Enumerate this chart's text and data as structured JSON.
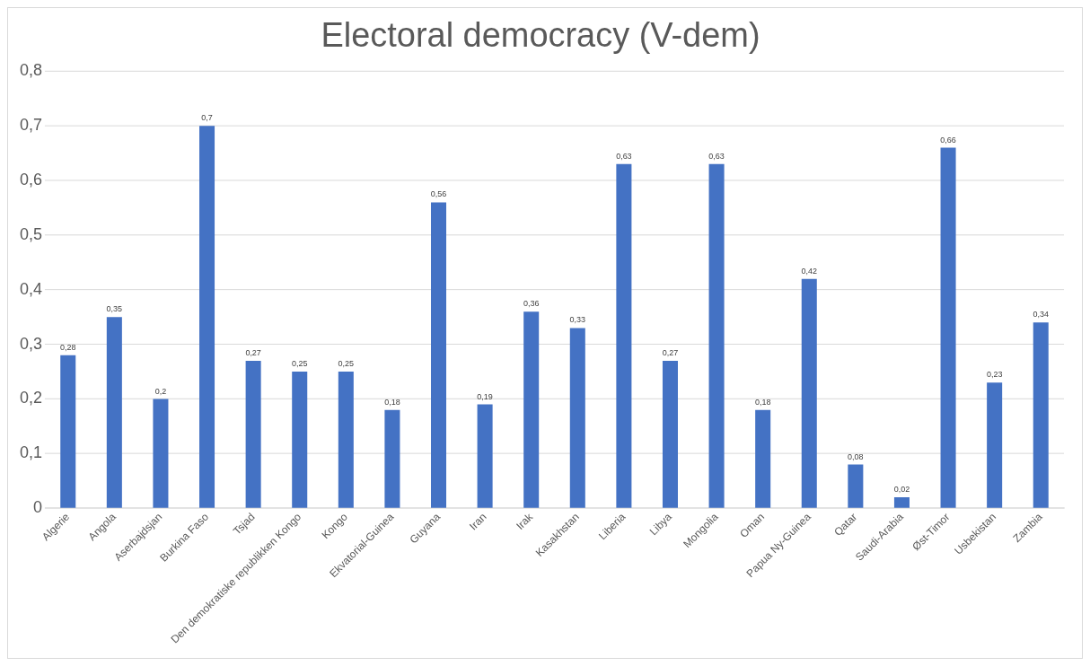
{
  "chart_data": {
    "type": "bar",
    "title": "Electoral democracy (V-dem)",
    "categories": [
      "Algerie",
      "Angola",
      "Aserbajdsjan",
      "Burkina Faso",
      "Tsjad",
      "Den demokratiske republikken Kongo",
      "Kongo",
      "Ekvatorial-Guinea",
      "Guyana",
      "Iran",
      "Irak",
      "Kasakhstan",
      "Liberia",
      "Libya",
      "Mongolia",
      "Oman",
      "Papua Ny-Guinea",
      "Qatar",
      "Saudi-Arabia",
      "Øst-Timor",
      "Usbekistan",
      "Zambia"
    ],
    "values": [
      0.28,
      0.35,
      0.2,
      0.7,
      0.27,
      0.25,
      0.25,
      0.18,
      0.56,
      0.19,
      0.36,
      0.33,
      0.63,
      0.27,
      0.63,
      0.18,
      0.42,
      0.08,
      0.02,
      0.66,
      0.23,
      0.34
    ],
    "value_labels": [
      "0,28",
      "0,35",
      "0,2",
      "0,7",
      "0,27",
      "0,25",
      "0,25",
      "0,18",
      "0,56",
      "0,19",
      "0,36",
      "0,33",
      "0,63",
      "0,27",
      "0,63",
      "0,18",
      "0,42",
      "0,08",
      "0,02",
      "0,66",
      "0,23",
      "0,34"
    ],
    "color": "#4472c4",
    "ylim": [
      0,
      0.8
    ],
    "yticks": [
      {
        "value": 0,
        "label": "0"
      },
      {
        "value": 0.1,
        "label": "0,1"
      },
      {
        "value": 0.2,
        "label": "0,2"
      },
      {
        "value": 0.3,
        "label": "0,3"
      },
      {
        "value": 0.4,
        "label": "0,4"
      },
      {
        "value": 0.5,
        "label": "0,5"
      },
      {
        "value": 0.6,
        "label": "0,6"
      },
      {
        "value": 0.7,
        "label": "0,7"
      },
      {
        "value": 0.8,
        "label": "0,8"
      }
    ],
    "grid": "y",
    "legend": false
  }
}
